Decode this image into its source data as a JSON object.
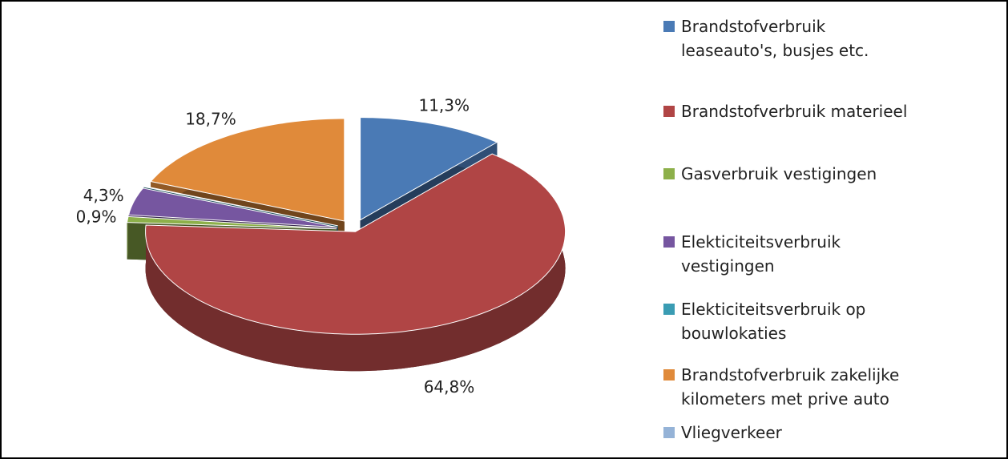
{
  "chart_data": {
    "type": "pie3d",
    "series": [
      {
        "name": "Brandstofverbruik leaseauto's, busjes etc.",
        "color": "#4a7ab5"
      },
      {
        "name": "Brandstofverbruik materieel",
        "color": "#b04545"
      },
      {
        "name": "Gasverbruik vestigingen",
        "color": "#8db04a"
      },
      {
        "name": "Elekticiteitsverbruik vestigingen",
        "color": "#7656a0"
      },
      {
        "name": "Elekticiteitsverbruik op bouwlokaties",
        "color": "#3a9cb3"
      },
      {
        "name": "Brandstofverbruik zakelijke kilometers met prive auto",
        "color": "#e08a3a"
      },
      {
        "name": "Vliegverkeer",
        "color": "#95b3d7"
      }
    ],
    "values": [
      11.3,
      64.8,
      0.9,
      4.3,
      0.1,
      18.7,
      0
    ],
    "value_labels": [
      "11,3%",
      "64,8%",
      "0,9%",
      "4,3%",
      null,
      "18,7%",
      null
    ],
    "legend": "right"
  }
}
